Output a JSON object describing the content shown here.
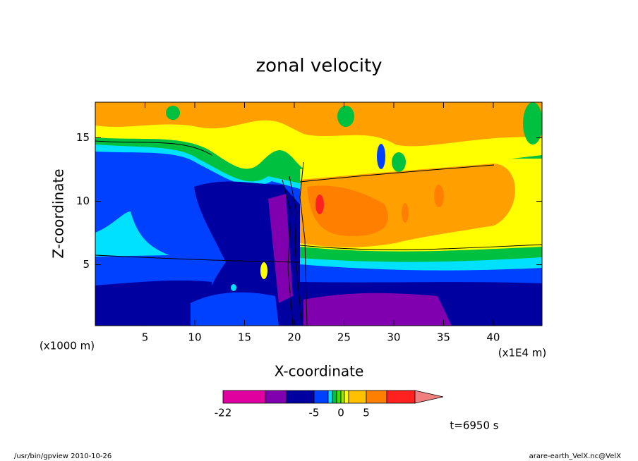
{
  "chart_data": {
    "type": "contour",
    "title": "zonal velocity",
    "x_label": "X-coordinate",
    "y_label": "Z-coordinate",
    "x_unit": "(x1E4 m)",
    "y_unit": "(x1000 m)",
    "xlim": [
      0,
      44.9
    ],
    "ylim": [
      0.2,
      17.8
    ],
    "xticks": [
      5,
      10,
      15,
      20,
      25,
      30,
      35,
      40
    ],
    "yticks": [
      5,
      10,
      15
    ],
    "colorbar": {
      "levels": [
        -22,
        -15,
        -10,
        -5,
        -3,
        -2,
        -1,
        0,
        1,
        2,
        5,
        10,
        15
      ],
      "colors": [
        "#e000a0",
        "#8000b0",
        "#0000a0",
        "#0040ff",
        "#00e0ff",
        "#00c040",
        "#40e000",
        "#a0e000",
        "#ffff00",
        "#ffc000",
        "#ff8000",
        "#ff2020"
      ],
      "extend_color": "#f08080",
      "ticks": [
        -22,
        -5,
        0,
        5
      ]
    },
    "annotation": "t=6950 s"
  },
  "footer": {
    "left": "/usr/bin/gpview  2010-10-26",
    "right": "arare-earth_VelX.nc@VelX"
  }
}
